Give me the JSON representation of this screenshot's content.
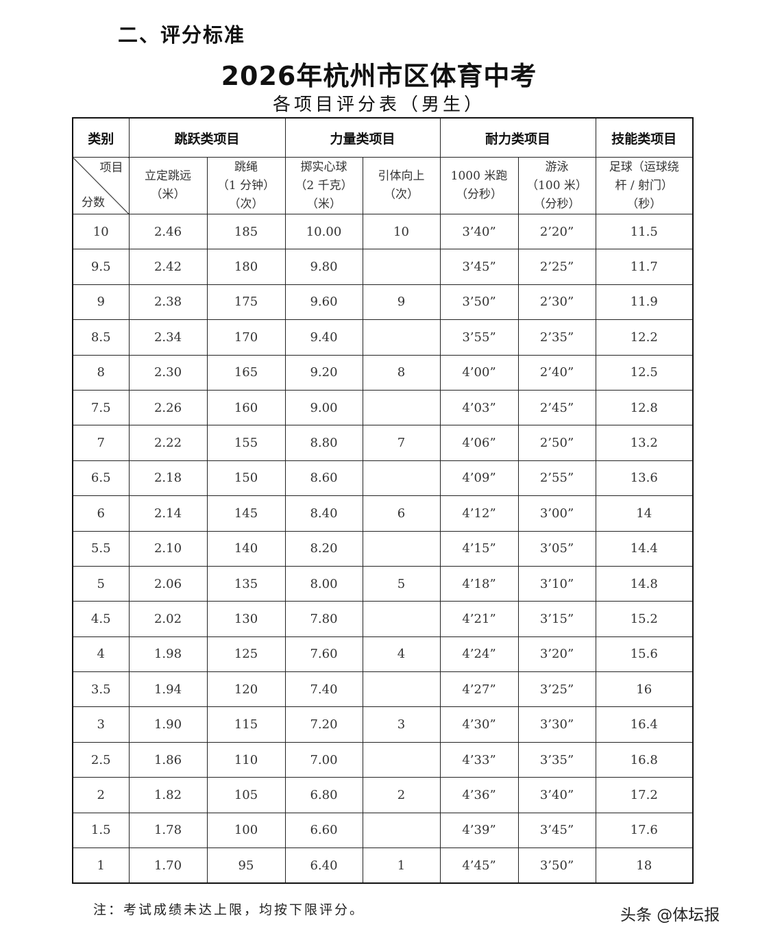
{
  "section_heading": "二、评分标准",
  "title": "2026年杭州市区体育中考",
  "subtitle": "各项目评分表（男生）",
  "header": {
    "category": "类别",
    "groups": [
      "跳跃类项目",
      "力量类项目",
      "耐力类项目",
      "技能类项目"
    ],
    "diag_top": "项目",
    "diag_bottom": "分数",
    "items": [
      [
        "立定跳远",
        "（米）"
      ],
      [
        "跳绳",
        "（1 分钟）",
        "（次）"
      ],
      [
        "掷实心球",
        "（2 千克）",
        "（米）"
      ],
      [
        "引体向上",
        "（次）"
      ],
      [
        "1000 米跑",
        "（分秒）"
      ],
      [
        "游泳",
        "（100 米）",
        "（分秒）"
      ],
      [
        "足球（运球绕",
        "杆 / 射门）",
        "（秒）"
      ]
    ]
  },
  "rows": [
    [
      "10",
      "2.46",
      "185",
      "10.00",
      "10",
      "3’40”",
      "2’20”",
      "11.5"
    ],
    [
      "9.5",
      "2.42",
      "180",
      "9.80",
      "",
      "3’45”",
      "2’25”",
      "11.7"
    ],
    [
      "9",
      "2.38",
      "175",
      "9.60",
      "9",
      "3’50”",
      "2’30”",
      "11.9"
    ],
    [
      "8.5",
      "2.34",
      "170",
      "9.40",
      "",
      "3’55”",
      "2’35”",
      "12.2"
    ],
    [
      "8",
      "2.30",
      "165",
      "9.20",
      "8",
      "4’00”",
      "2’40”",
      "12.5"
    ],
    [
      "7.5",
      "2.26",
      "160",
      "9.00",
      "",
      "4’03”",
      "2’45”",
      "12.8"
    ],
    [
      "7",
      "2.22",
      "155",
      "8.80",
      "7",
      "4’06”",
      "2’50”",
      "13.2"
    ],
    [
      "6.5",
      "2.18",
      "150",
      "8.60",
      "",
      "4’09”",
      "2’55”",
      "13.6"
    ],
    [
      "6",
      "2.14",
      "145",
      "8.40",
      "6",
      "4’12”",
      "3’00”",
      "14"
    ],
    [
      "5.5",
      "2.10",
      "140",
      "8.20",
      "",
      "4’15”",
      "3’05”",
      "14.4"
    ],
    [
      "5",
      "2.06",
      "135",
      "8.00",
      "5",
      "4’18”",
      "3’10”",
      "14.8"
    ],
    [
      "4.5",
      "2.02",
      "130",
      "7.80",
      "",
      "4’21”",
      "3’15”",
      "15.2"
    ],
    [
      "4",
      "1.98",
      "125",
      "7.60",
      "4",
      "4’24”",
      "3’20”",
      "15.6"
    ],
    [
      "3.5",
      "1.94",
      "120",
      "7.40",
      "",
      "4’27”",
      "3’25”",
      "16"
    ],
    [
      "3",
      "1.90",
      "115",
      "7.20",
      "3",
      "4’30”",
      "3’30”",
      "16.4"
    ],
    [
      "2.5",
      "1.86",
      "110",
      "7.00",
      "",
      "4’33”",
      "3’35”",
      "16.8"
    ],
    [
      "2",
      "1.82",
      "105",
      "6.80",
      "2",
      "4’36”",
      "3’40”",
      "17.2"
    ],
    [
      "1.5",
      "1.78",
      "100",
      "6.60",
      "",
      "4’39”",
      "3’45”",
      "17.6"
    ],
    [
      "1",
      "1.70",
      "95",
      "6.40",
      "1",
      "4’45”",
      "3’50”",
      "18"
    ]
  ],
  "note": "注：考试成绩未达上限，均按下限评分。",
  "watermark": "头条 @体坛报"
}
